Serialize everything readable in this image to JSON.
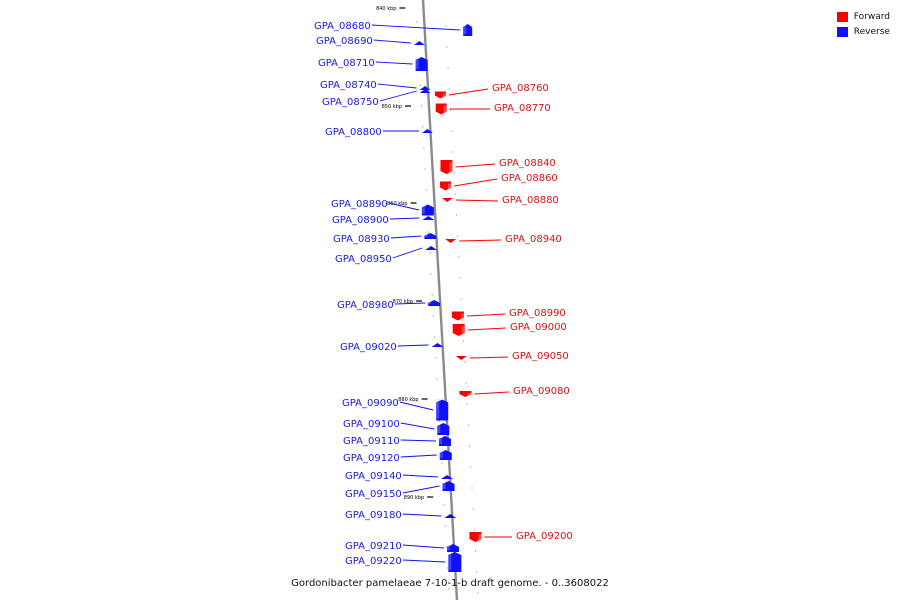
{
  "legend": {
    "forward": {
      "label": "Forward",
      "color": "#ff0000"
    },
    "reverse": {
      "label": "Reverse",
      "color": "#1010ff"
    }
  },
  "caption": "Gordonibacter pamelaeae 7-10-1-b draft genome. - 0..3608022",
  "scale_marks": [
    "840 kbp",
    "850 kbp",
    "860 kbp",
    "870 kbp",
    "880 kbp",
    "890 kbp"
  ],
  "genes": [
    {
      "name": "GPA_08680",
      "strand": "reverse"
    },
    {
      "name": "GPA_08690",
      "strand": "reverse"
    },
    {
      "name": "GPA_08710",
      "strand": "reverse"
    },
    {
      "name": "GPA_08740",
      "strand": "reverse"
    },
    {
      "name": "GPA_08750",
      "strand": "reverse"
    },
    {
      "name": "GPA_08760",
      "strand": "forward"
    },
    {
      "name": "GPA_08770",
      "strand": "forward"
    },
    {
      "name": "GPA_08800",
      "strand": "reverse"
    },
    {
      "name": "GPA_08840",
      "strand": "forward"
    },
    {
      "name": "GPA_08860",
      "strand": "forward"
    },
    {
      "name": "GPA_08880",
      "strand": "forward"
    },
    {
      "name": "GPA_08890",
      "strand": "reverse"
    },
    {
      "name": "GPA_08900",
      "strand": "reverse"
    },
    {
      "name": "GPA_08930",
      "strand": "reverse"
    },
    {
      "name": "GPA_08940",
      "strand": "forward"
    },
    {
      "name": "GPA_08950",
      "strand": "reverse"
    },
    {
      "name": "GPA_08980",
      "strand": "reverse"
    },
    {
      "name": "GPA_08990",
      "strand": "forward"
    },
    {
      "name": "GPA_09000",
      "strand": "forward"
    },
    {
      "name": "GPA_09020",
      "strand": "reverse"
    },
    {
      "name": "GPA_09050",
      "strand": "forward"
    },
    {
      "name": "GPA_09080",
      "strand": "forward"
    },
    {
      "name": "GPA_09090",
      "strand": "reverse"
    },
    {
      "name": "GPA_09100",
      "strand": "reverse"
    },
    {
      "name": "GPA_09110",
      "strand": "reverse"
    },
    {
      "name": "GPA_09120",
      "strand": "reverse"
    },
    {
      "name": "GPA_09140",
      "strand": "reverse"
    },
    {
      "name": "GPA_09150",
      "strand": "reverse"
    },
    {
      "name": "GPA_09180",
      "strand": "reverse"
    },
    {
      "name": "GPA_09200",
      "strand": "forward"
    },
    {
      "name": "GPA_09210",
      "strand": "reverse"
    },
    {
      "name": "GPA_09220",
      "strand": "reverse"
    }
  ]
}
